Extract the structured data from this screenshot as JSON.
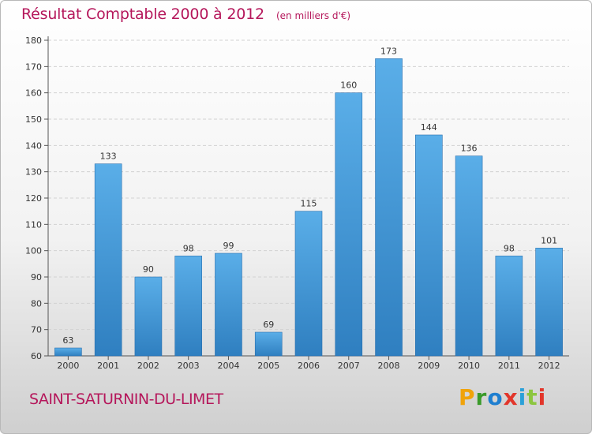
{
  "header": {
    "title": "Résultat Comptable 2000 à 2012",
    "unit": "(en milliers d'€)"
  },
  "footer": {
    "commune": "SAINT-SATURNIN-DU-LIMET",
    "logo_letters": [
      "P",
      "r",
      "o",
      "x",
      "i",
      "t",
      "i"
    ],
    "logo_colors": [
      "#f0a30a",
      "#3a9a2a",
      "#1f7fd0",
      "#e2362b",
      "#2aa0d8",
      "#8cc63f",
      "#e2362b"
    ]
  },
  "colors": {
    "accent": "#b5175b",
    "bar_top": "#5aaee8",
    "bar_bottom": "#2f7fc0"
  },
  "chart_data": {
    "type": "bar",
    "title": "Résultat Comptable 2000 à 2012",
    "categories": [
      "2000",
      "2001",
      "2002",
      "2003",
      "2004",
      "2005",
      "2006",
      "2007",
      "2008",
      "2009",
      "2010",
      "2011",
      "2012"
    ],
    "values": [
      63,
      133,
      90,
      98,
      99,
      69,
      115,
      160,
      173,
      144,
      136,
      98,
      101
    ],
    "ylim": [
      60,
      180
    ],
    "yticks": [
      60,
      70,
      80,
      90,
      100,
      110,
      120,
      130,
      140,
      150,
      160,
      170,
      180
    ],
    "grid": true
  }
}
